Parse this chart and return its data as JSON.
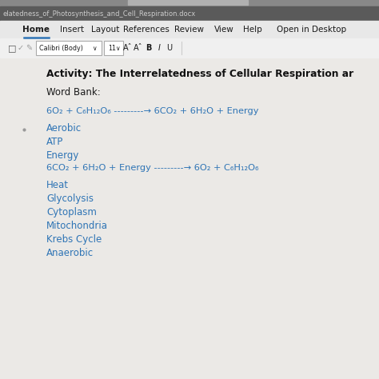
{
  "title_bar_text": "elatedness_of_Photosynthesis_and_Cell_Respiration.docx",
  "menu_items": [
    "Home",
    "Insert",
    "Layout",
    "References",
    "Review",
    "View",
    "Help",
    "Open in Desktop"
  ],
  "activity_title": "Activity: The Interrelatedness of Cellular Respiration ar",
  "word_bank_label": "Word Bank:",
  "eq1_text": "6O₂ + C₆H₁₂O₆ ---------→ 6CO₂ + 6H₂O + Energy",
  "word_list1": [
    "Aerobic",
    "ATP",
    "Energy"
  ],
  "eq2_text": "6CO₂ + 6H₂O + Energy ---------→ 6O₂ + C₆H₁₂O₆",
  "word_list2": [
    "Heat",
    "Glycolysis",
    "Cytoplasm",
    "Mitochondria",
    "Krebs Cycle",
    "Anaerobic"
  ],
  "bg_color_top": "#7a7a7a",
  "title_bar_color": "#5a5a5a",
  "title_bar_text_color": "#cccccc",
  "menu_bar_color": "#e8e8e8",
  "toolbar_color": "#f0f0f0",
  "doc_bg_color": "#ebe9e6",
  "text_dark": "#1a1a1a",
  "blue_color": "#2e74b5",
  "bold_black": "#111111",
  "home_color": "#1a1a1a",
  "menu_fontsize": 7.5,
  "content_fontsize": 8.5,
  "eq_fontsize": 8.2,
  "title_fontsize": 8.8
}
